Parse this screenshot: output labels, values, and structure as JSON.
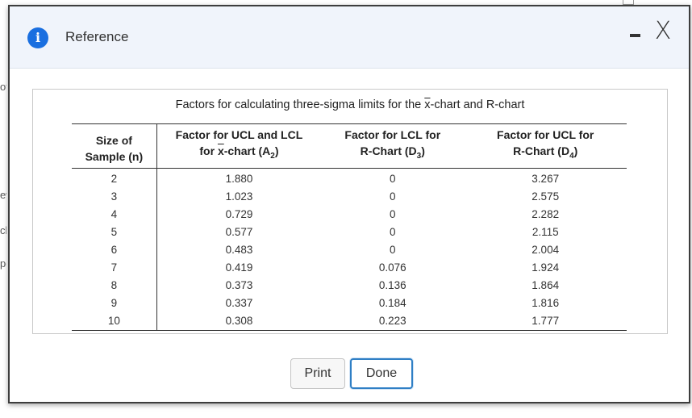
{
  "background": {
    "fragments": [
      "of",
      "ew",
      "cl",
      "pe"
    ]
  },
  "dialog": {
    "title": "Reference",
    "icons": {
      "info": "info-icon",
      "minimize": "minimize-icon",
      "close": "close-icon"
    },
    "info_glyph": "i",
    "close_glyph": "X"
  },
  "table": {
    "caption_prefix": "Factors for calculating three-sigma limits for the ",
    "caption_xbar": "x",
    "caption_suffix": "-chart and R-chart",
    "headers": {
      "n_line1": "Size of",
      "n_line2": "Sample (n)",
      "a2_line1": "Factor for UCL and LCL",
      "a2_line2_prefix": "for ",
      "a2_line2_xbar": "x",
      "a2_line2_mid": "-chart (A",
      "a2_sub": "2",
      "a2_close": ")",
      "d3_line1": "Factor for LCL for",
      "d3_line2": "R-Chart (D",
      "d3_sub": "3",
      "d3_close": ")",
      "d4_line1": "Factor for UCL for",
      "d4_line2": "R-Chart (D",
      "d4_sub": "4",
      "d4_close": ")"
    },
    "rows": [
      {
        "n": "2",
        "a2": "1.880",
        "d3": "0",
        "d4": "3.267"
      },
      {
        "n": "3",
        "a2": "1.023",
        "d3": "0",
        "d4": "2.575"
      },
      {
        "n": "4",
        "a2": "0.729",
        "d3": "0",
        "d4": "2.282"
      },
      {
        "n": "5",
        "a2": "0.577",
        "d3": "0",
        "d4": "2.115"
      },
      {
        "n": "6",
        "a2": "0.483",
        "d3": "0",
        "d4": "2.004"
      },
      {
        "n": "7",
        "a2": "0.419",
        "d3": "0.076",
        "d4": "1.924"
      },
      {
        "n": "8",
        "a2": "0.373",
        "d3": "0.136",
        "d4": "1.864"
      },
      {
        "n": "9",
        "a2": "0.337",
        "d3": "0.184",
        "d4": "1.816"
      },
      {
        "n": "10",
        "a2": "0.308",
        "d3": "0.223",
        "d4": "1.777"
      }
    ]
  },
  "buttons": {
    "print_label": "Print",
    "done_label": "Done"
  },
  "colors": {
    "accent": "#1a6fe0",
    "focus_border": "#2f7fc5",
    "titlebar_bg": "#f0f4fb"
  }
}
